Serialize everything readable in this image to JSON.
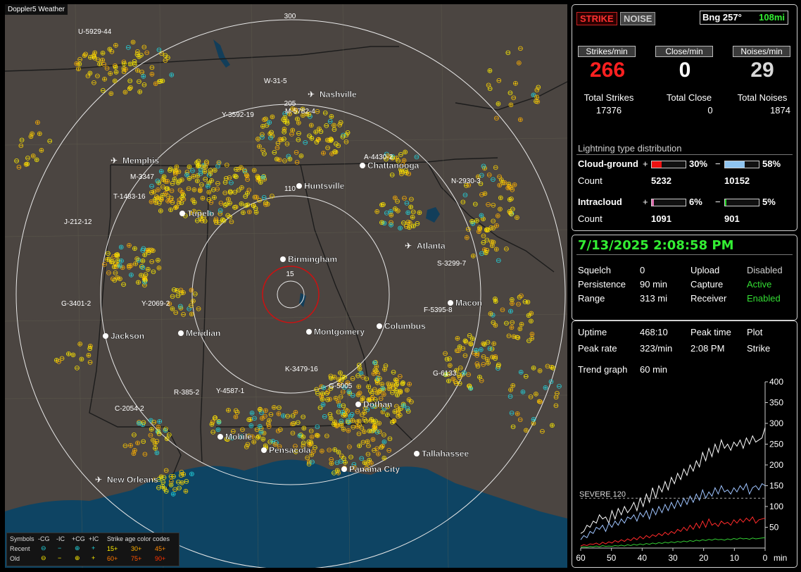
{
  "app": {
    "title": "Doppler5 Weather"
  },
  "map": {
    "range_labels": [
      "300",
      "205",
      "110",
      "15"
    ],
    "cities": [
      "Nashville",
      "Memphis",
      "Chattanooga",
      "Huntsville",
      "Tupelo",
      "Atlanta",
      "Birmingham",
      "Macon",
      "Jackson",
      "Meridian",
      "Montgomery",
      "Columbus",
      "Dothan",
      "Mobile",
      "Pensacola",
      "Tallahassee",
      "Panama City",
      "New Orleans"
    ],
    "storm_labels": [
      "U-5929-44",
      "W-31-5",
      "M-5782-4",
      "Y-3592-19",
      "M-3347",
      "T-1483-16",
      "J-212-12",
      "G-3401-2",
      "Y-2069-2",
      "N-2930-3",
      "S-3299-7",
      "F-5395-8",
      "G-6133",
      "K-3479-16",
      "G-5005",
      "R-385-2",
      "Y-4587-1",
      "C-2054-2",
      "A-4430-2"
    ]
  },
  "legend": {
    "symbols": "Symbols",
    "cg_neg": "-CG",
    "ic_neg": "-IC",
    "cg_pos": "+CG",
    "ic_pos": "+IC",
    "age_title": "Strike age color codes",
    "recent": "Recent",
    "old": "Old",
    "age_recent": [
      "15+",
      "30+",
      "45+"
    ],
    "age_old": [
      "60+",
      "75+",
      "90+"
    ]
  },
  "panel_top": {
    "strike_btn": "STRIKE",
    "noise_btn": "NOISE",
    "bearing": "Bng 257°",
    "distance": "108mi",
    "strikes_min_label": "Strikes/min",
    "close_min_label": "Close/min",
    "noises_min_label": "Noises/min",
    "strikes_min": "266",
    "close_min": "0",
    "noises_min": "29",
    "total_strikes_label": "Total Strikes",
    "total_close_label": "Total Close",
    "total_noises_label": "Total Noises",
    "total_strikes": "17376",
    "total_close": "0",
    "total_noises": "1874",
    "dist_title": "Lightning type distribution",
    "cg_label": "Cloud-ground",
    "ic_label": "Intracloud",
    "count_label": "Count",
    "cg_pos_pct": "30%",
    "cg_neg_pct": "58%",
    "cg_pos_count": "5232",
    "cg_neg_count": "10152",
    "ic_pos_pct": "6%",
    "ic_neg_pct": "5%",
    "ic_pos_count": "1091",
    "ic_neg_count": "901",
    "cg_pos_fill": 0.3,
    "cg_neg_fill": 0.58,
    "ic_pos_fill": 0.06,
    "ic_neg_fill": 0.05,
    "plus": "+",
    "minus": "−"
  },
  "panel_mid": {
    "datetime": "7/13/2025 2:08:58 PM",
    "squelch_label": "Squelch",
    "squelch": "0",
    "persistence_label": "Persistence",
    "persistence": "90 min",
    "range_label": "Range",
    "range": "313 mi",
    "upload_label": "Upload",
    "upload": "Disabled",
    "capture_label": "Capture",
    "capture": "Active",
    "receiver_label": "Receiver",
    "receiver": "Enabled"
  },
  "panel_bottom": {
    "uptime_label": "Uptime",
    "uptime": "468:10",
    "peak_time_label": "Peak time",
    "peak_time": "2:08 PM",
    "plot_label": "Plot",
    "plot": "Strike",
    "peak_rate_label": "Peak rate",
    "peak_rate": "323/min",
    "trend_label": "Trend graph",
    "trend": "60 min",
    "severe_label": "SEVERE 120"
  },
  "chart_data": {
    "type": "line",
    "xlabel": "min",
    "x_ticks": [
      "60",
      "50",
      "40",
      "30",
      "20",
      "10",
      "0"
    ],
    "y_ticks": [
      "400",
      "350",
      "300",
      "250",
      "200",
      "150",
      "100",
      "50"
    ],
    "ylim": [
      0,
      400
    ],
    "xlim": [
      60,
      0
    ],
    "threshold": 120,
    "grid": false,
    "series": [
      {
        "color": "#ffffff",
        "values": [
          35,
          40,
          55,
          50,
          65,
          60,
          80,
          70,
          75,
          60,
          90,
          70,
          95,
          80,
          100,
          85,
          95,
          110,
          90,
          120,
          100,
          130,
          110,
          145,
          120,
          150,
          135,
          160,
          140,
          170,
          155,
          180,
          165,
          190,
          175,
          200,
          185,
          210,
          195,
          230,
          210,
          240,
          220,
          250,
          230,
          260,
          240,
          250,
          235,
          255,
          245,
          260,
          240,
          265,
          250,
          270,
          255,
          260,
          265,
          290
        ]
      },
      {
        "color": "#9fc4ff",
        "values": [
          20,
          30,
          25,
          40,
          35,
          50,
          45,
          55,
          40,
          60,
          50,
          65,
          55,
          70,
          60,
          75,
          70,
          80,
          65,
          85,
          75,
          90,
          70,
          95,
          80,
          100,
          85,
          105,
          90,
          110,
          95,
          115,
          100,
          120,
          105,
          125,
          110,
          130,
          115,
          140,
          120,
          135,
          125,
          145,
          130,
          150,
          135,
          140,
          130,
          145,
          135,
          150,
          140,
          155,
          130,
          145,
          150,
          140,
          155,
          150
        ]
      },
      {
        "color": "#ff2a2a",
        "values": [
          5,
          8,
          6,
          10,
          9,
          12,
          8,
          14,
          10,
          15,
          12,
          18,
          14,
          20,
          16,
          22,
          18,
          25,
          20,
          28,
          22,
          30,
          25,
          32,
          28,
          35,
          30,
          38,
          32,
          40,
          35,
          45,
          40,
          50,
          42,
          55,
          45,
          60,
          48,
          65,
          50,
          70,
          55,
          60,
          52,
          65,
          58,
          62,
          55,
          68,
          60,
          70,
          62,
          72,
          65,
          75,
          60,
          68,
          70,
          72
        ]
      },
      {
        "color": "#33cc33",
        "values": [
          2,
          3,
          2,
          4,
          3,
          5,
          3,
          6,
          4,
          5,
          4,
          6,
          5,
          7,
          5,
          8,
          6,
          9,
          7,
          10,
          8,
          11,
          9,
          12,
          10,
          13,
          11,
          14,
          12,
          15,
          13,
          16,
          14,
          17,
          15,
          18,
          16,
          19,
          17,
          20,
          18,
          21,
          19,
          22,
          20,
          21,
          19,
          22,
          20,
          23,
          21,
          24,
          22,
          23,
          21,
          24,
          22,
          23,
          24,
          25
        ]
      }
    ]
  }
}
